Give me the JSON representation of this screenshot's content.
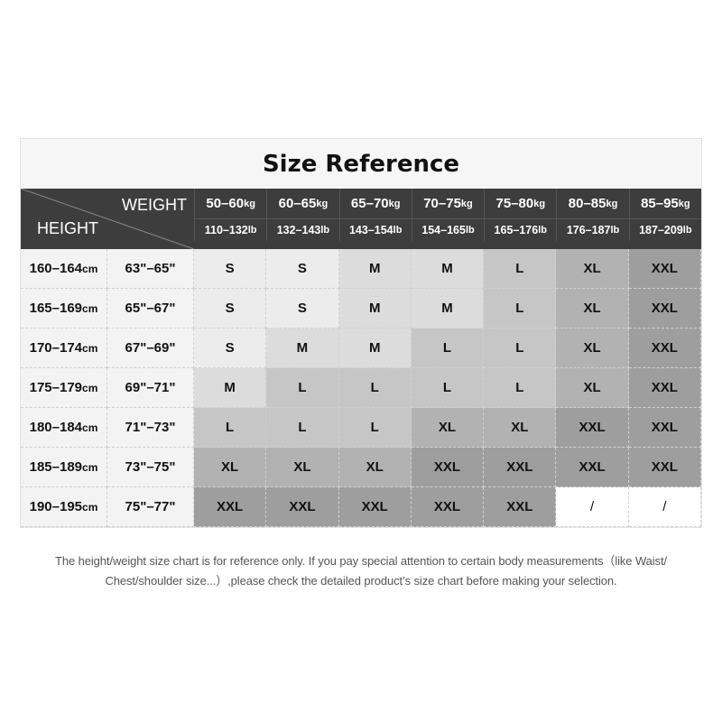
{
  "title": "Size Reference",
  "header": {
    "weight_label": "WEIGHT",
    "height_label": "HEIGHT",
    "weights": [
      {
        "kg": "50–60",
        "lb": "110–132"
      },
      {
        "kg": "60–65",
        "lb": "132–143"
      },
      {
        "kg": "65–70",
        "lb": "143–154"
      },
      {
        "kg": "70–75",
        "lb": "154–165"
      },
      {
        "kg": "75–80",
        "lb": "165–176"
      },
      {
        "kg": "80–85",
        "lb": "176–187"
      },
      {
        "kg": "85–95",
        "lb": "187–209"
      }
    ],
    "kg_unit": "kg",
    "lb_unit": "lb"
  },
  "cm_unit": "cm",
  "rows": [
    {
      "cm": "160–164",
      "inch": "63\"–65\"",
      "sizes": [
        "S",
        "S",
        "M",
        "M",
        "L",
        "XL",
        "XXL"
      ]
    },
    {
      "cm": "165–169",
      "inch": "65\"–67\"",
      "sizes": [
        "S",
        "S",
        "M",
        "M",
        "L",
        "XL",
        "XXL"
      ]
    },
    {
      "cm": "170–174",
      "inch": "67\"–69\"",
      "sizes": [
        "S",
        "M",
        "M",
        "L",
        "L",
        "XL",
        "XXL"
      ]
    },
    {
      "cm": "175–179",
      "inch": "69\"–71\"",
      "sizes": [
        "M",
        "L",
        "L",
        "L",
        "L",
        "XL",
        "XXL"
      ]
    },
    {
      "cm": "180–184",
      "inch": "71\"–73\"",
      "sizes": [
        "L",
        "L",
        "L",
        "XL",
        "XL",
        "XXL",
        "XXL"
      ]
    },
    {
      "cm": "185–189",
      "inch": "73\"–75\"",
      "sizes": [
        "XL",
        "XL",
        "XL",
        "XXL",
        "XXL",
        "XXL",
        "XXL"
      ]
    },
    {
      "cm": "190–195",
      "inch": "75\"–77\"",
      "sizes": [
        "XXL",
        "XXL",
        "XXL",
        "XXL",
        "XXL",
        "/",
        "/"
      ]
    }
  ],
  "size_colors": {
    "S": "#ececec",
    "M": "#dcdcdc",
    "L": "#c6c6c6",
    "XL": "#b2b2b2",
    "XXL": "#9e9e9e",
    "/": "#ffffff"
  },
  "note": {
    "line1": "The height/weight size chart is for reference only. If you pay special attention to certain body measurements（like Waist/",
    "line2": "Chest/shoulder size...）,please check the detailed product’s size chart before making your selection."
  }
}
